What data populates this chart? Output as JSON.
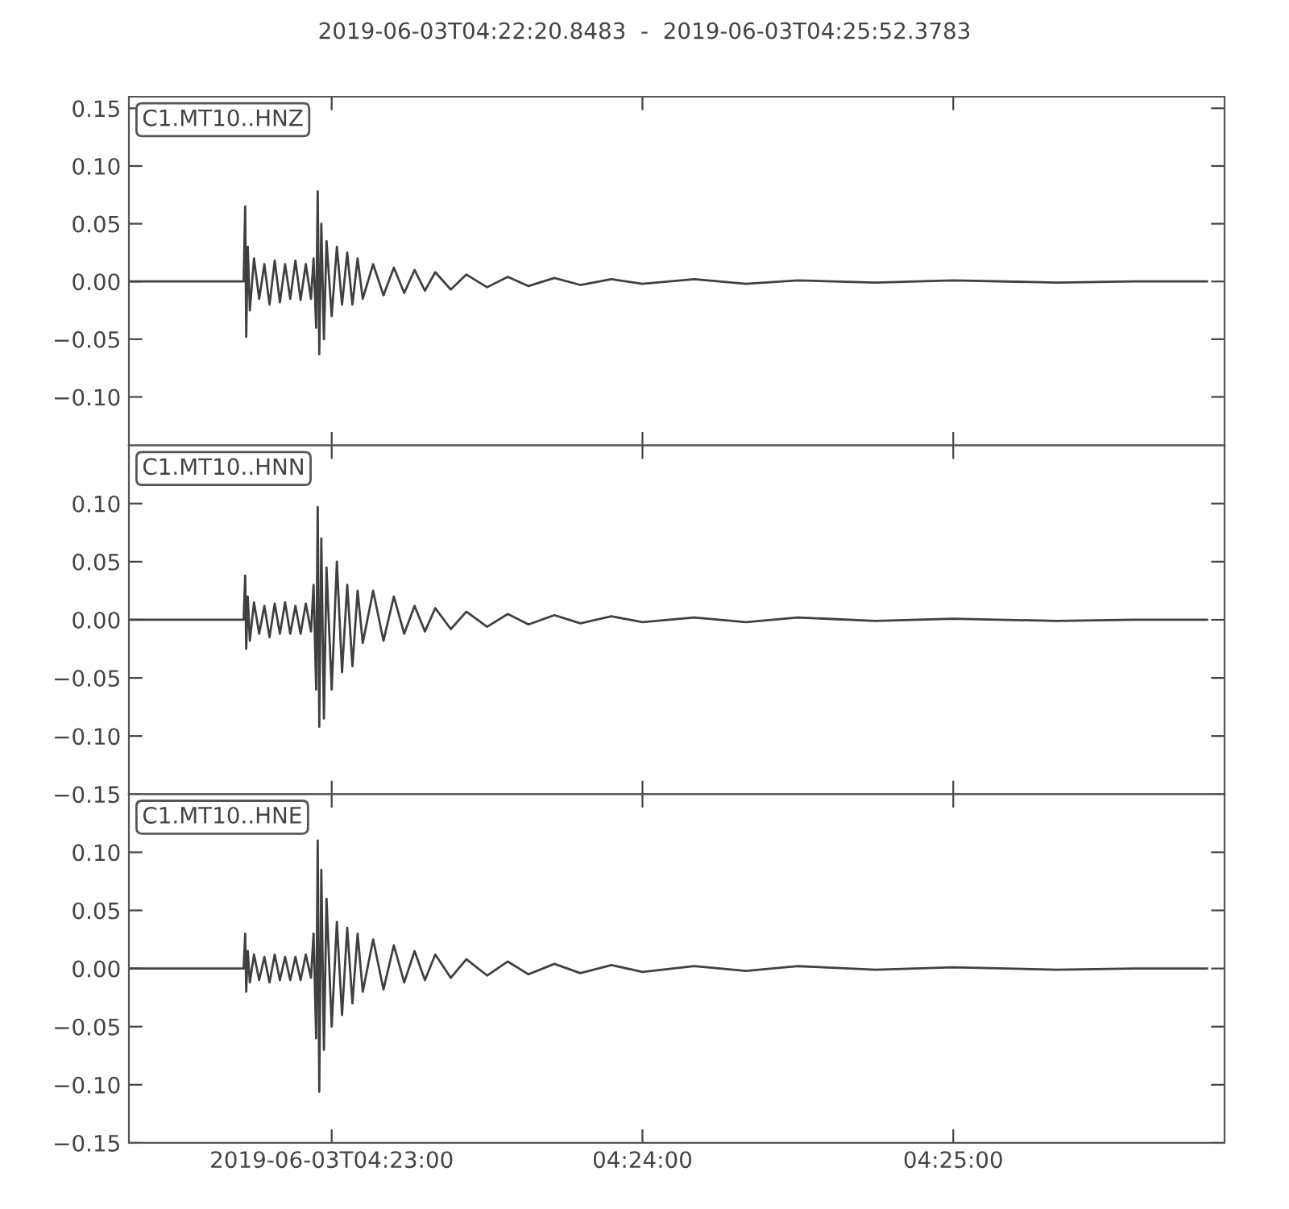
{
  "chart_data": [
    {
      "type": "line",
      "title": "2019-06-03T04:22:20.8483  -  2019-06-03T04:25:52.3783",
      "tick_labels": "y",
      "grid": false,
      "legend": "top left",
      "xlim": [
        4.372458,
        4.431216
      ],
      "xticks": [
        {
          "value": 4.383333,
          "label": null
        },
        {
          "value": 4.4,
          "label": null
        },
        {
          "value": 4.416667,
          "label": null
        }
      ],
      "ylim": [
        -0.142,
        0.16
      ],
      "yticks": [
        {
          "value": -0.1,
          "label": "−0.10"
        },
        {
          "value": -0.05,
          "label": "−0.05"
        },
        {
          "value": 0,
          "label": "0.00"
        },
        {
          "value": 0.05,
          "label": "0.05"
        },
        {
          "value": 0.1,
          "label": "0.10"
        },
        {
          "value": 0.15,
          "label": "0.15"
        }
      ],
      "x": [
        4.372473,
        4.378611,
        4.378695,
        4.37875,
        4.378834,
        4.378945,
        4.379167,
        4.379445,
        4.379723,
        4.38,
        4.380278,
        4.380556,
        4.380834,
        4.381111,
        4.381389,
        4.381667,
        4.381945,
        4.382223,
        4.382361,
        4.3825,
        4.382584,
        4.382667,
        4.382778,
        4.382917,
        4.383056,
        4.383334,
        4.383611,
        4.383889,
        4.384167,
        4.384445,
        4.384723,
        4.385,
        4.385556,
        4.386111,
        4.386667,
        4.387223,
        4.387778,
        4.388334,
        4.388889,
        4.389723,
        4.390556,
        4.391667,
        4.392778,
        4.393889,
        4.395278,
        4.396667,
        4.398334,
        4.4,
        4.402778,
        4.405556,
        4.408334,
        4.4125,
        4.416667,
        4.422223,
        4.426389,
        4.430278
      ],
      "series": [
        {
          "name": "C1.MT10..HNZ",
          "color": "#404040",
          "values": [
            0,
            0,
            0.065,
            -0.048,
            0.03,
            -0.025,
            0.02,
            -0.015,
            0.015,
            -0.02,
            0.018,
            -0.018,
            0.015,
            -0.015,
            0.018,
            -0.016,
            0.015,
            -0.015,
            0.02,
            -0.04,
            0.078,
            -0.063,
            0.05,
            -0.05,
            0.035,
            -0.03,
            0.03,
            -0.02,
            0.025,
            -0.02,
            0.02,
            -0.015,
            0.015,
            -0.012,
            0.012,
            -0.01,
            0.01,
            -0.008,
            0.008,
            -0.007,
            0.006,
            -0.005,
            0.004,
            -0.004,
            0.003,
            -0.003,
            0.002,
            -0.002,
            0.002,
            -0.002,
            0.001,
            -0.001,
            0.001,
            -0.001,
            0,
            0
          ]
        }
      ]
    },
    {
      "type": "line",
      "tick_labels": "y",
      "grid": false,
      "legend": "top left",
      "xlim": [
        4.372458,
        4.431216
      ],
      "xticks": [
        {
          "value": 4.383333,
          "label": null
        },
        {
          "value": 4.4,
          "label": null
        },
        {
          "value": 4.416667,
          "label": null
        }
      ],
      "ylim": [
        -0.15,
        0.15
      ],
      "yticks": [
        {
          "value": -0.15,
          "label": "−0.15"
        },
        {
          "value": -0.1,
          "label": "−0.10"
        },
        {
          "value": -0.05,
          "label": "−0.05"
        },
        {
          "value": 0,
          "label": "0.00"
        },
        {
          "value": 0.05,
          "label": "0.05"
        },
        {
          "value": 0.1,
          "label": "0.10"
        }
      ],
      "x": [
        4.372473,
        4.378611,
        4.378695,
        4.37875,
        4.378834,
        4.378945,
        4.379167,
        4.379445,
        4.379723,
        4.38,
        4.380278,
        4.380556,
        4.380834,
        4.381111,
        4.381389,
        4.381667,
        4.381945,
        4.382223,
        4.382361,
        4.3825,
        4.382584,
        4.382667,
        4.382778,
        4.382917,
        4.383056,
        4.383334,
        4.383611,
        4.383889,
        4.384167,
        4.384445,
        4.384723,
        4.385,
        4.385556,
        4.386111,
        4.386667,
        4.387223,
        4.387778,
        4.388334,
        4.388889,
        4.389723,
        4.390556,
        4.391667,
        4.392778,
        4.393889,
        4.395278,
        4.396667,
        4.398334,
        4.4,
        4.402778,
        4.405556,
        4.408334,
        4.4125,
        4.416667,
        4.422223,
        4.426389,
        4.430278
      ],
      "series": [
        {
          "name": "C1.MT10..HNN",
          "color": "#404040",
          "values": [
            0,
            0,
            0.038,
            -0.025,
            0.02,
            -0.018,
            0.015,
            -0.012,
            0.012,
            -0.015,
            0.014,
            -0.012,
            0.015,
            -0.012,
            0.012,
            -0.012,
            0.014,
            -0.01,
            0.03,
            -0.06,
            0.097,
            -0.092,
            0.07,
            -0.085,
            0.045,
            -0.06,
            0.05,
            -0.045,
            0.03,
            -0.04,
            0.025,
            -0.02,
            0.025,
            -0.018,
            0.02,
            -0.012,
            0.012,
            -0.01,
            0.01,
            -0.008,
            0.007,
            -0.006,
            0.005,
            -0.004,
            0.004,
            -0.003,
            0.003,
            -0.002,
            0.002,
            -0.002,
            0.002,
            -0.001,
            0.001,
            -0.001,
            0,
            0
          ]
        }
      ]
    },
    {
      "type": "line",
      "grid": false,
      "legend": "top left",
      "xlim": [
        4.372458,
        4.431216
      ],
      "xticks": [
        {
          "value": 4.383333,
          "label": "2019-06-03T04:23:00"
        },
        {
          "value": 4.4,
          "label": "04:24:00"
        },
        {
          "value": 4.416667,
          "label": "04:25:00"
        }
      ],
      "ylim": [
        -0.15,
        0.15
      ],
      "yticks": [
        {
          "value": -0.15,
          "label": "−0.15"
        },
        {
          "value": -0.1,
          "label": "−0.10"
        },
        {
          "value": -0.05,
          "label": "−0.05"
        },
        {
          "value": 0,
          "label": "0.00"
        },
        {
          "value": 0.05,
          "label": "0.05"
        },
        {
          "value": 0.1,
          "label": "0.10"
        }
      ],
      "x": [
        4.372473,
        4.378611,
        4.378695,
        4.37875,
        4.378834,
        4.378945,
        4.379167,
        4.379445,
        4.379723,
        4.38,
        4.380278,
        4.380556,
        4.380834,
        4.381111,
        4.381389,
        4.381667,
        4.381945,
        4.382223,
        4.382361,
        4.3825,
        4.382584,
        4.382667,
        4.382778,
        4.382917,
        4.383056,
        4.383334,
        4.383611,
        4.383889,
        4.384167,
        4.384445,
        4.384723,
        4.385,
        4.385556,
        4.386111,
        4.386667,
        4.387223,
        4.387778,
        4.388334,
        4.388889,
        4.389723,
        4.390556,
        4.391667,
        4.392778,
        4.393889,
        4.395278,
        4.396667,
        4.398334,
        4.4,
        4.402778,
        4.405556,
        4.408334,
        4.4125,
        4.416667,
        4.422223,
        4.426389,
        4.430278
      ],
      "series": [
        {
          "name": "C1.MT10..HNE",
          "color": "#404040",
          "values": [
            0,
            0,
            0.03,
            -0.02,
            0.015,
            -0.012,
            0.012,
            -0.01,
            0.01,
            -0.012,
            0.012,
            -0.01,
            0.01,
            -0.01,
            0.01,
            -0.01,
            0.012,
            -0.008,
            0.03,
            -0.06,
            0.11,
            -0.106,
            0.085,
            -0.07,
            0.06,
            -0.05,
            0.04,
            -0.04,
            0.035,
            -0.03,
            0.03,
            -0.02,
            0.025,
            -0.018,
            0.02,
            -0.012,
            0.015,
            -0.01,
            0.012,
            -0.008,
            0.008,
            -0.006,
            0.006,
            -0.005,
            0.004,
            -0.004,
            0.003,
            -0.003,
            0.002,
            -0.002,
            0.002,
            -0.001,
            0.001,
            -0.001,
            0,
            0
          ]
        }
      ]
    }
  ]
}
